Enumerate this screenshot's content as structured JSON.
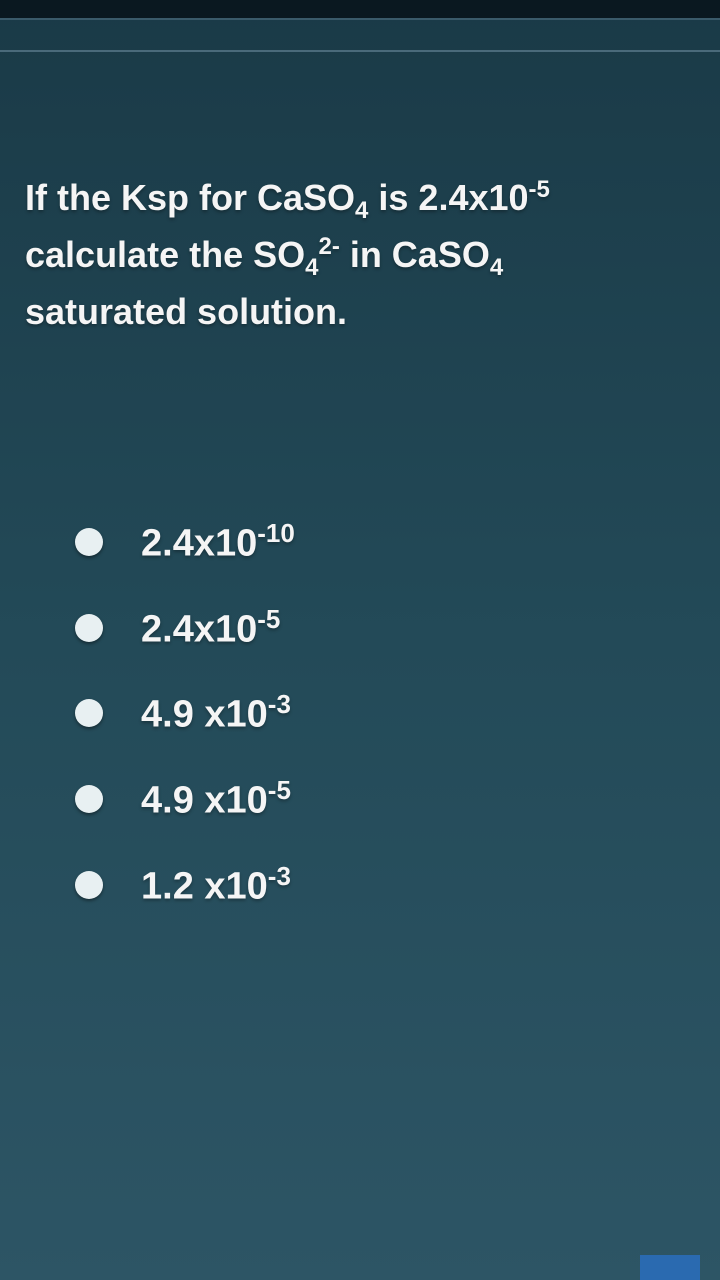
{
  "question": {
    "line1_prefix": "If the Ksp for CaSO",
    "line1_sub1": "4",
    "line1_mid": " is 2.4x10",
    "line1_sup": "-5",
    "line2_prefix": "calculate the SO",
    "line2_sub1": "4",
    "line2_sup": "2-",
    "line2_mid": " in CaSO",
    "line2_sub2": "4",
    "line3": "saturated solution."
  },
  "options": [
    {
      "base": "2.4x10",
      "exp": "-10"
    },
    {
      "base": "2.4x10",
      "exp": "-5"
    },
    {
      "base": "4.9 x10",
      "exp": "-3"
    },
    {
      "base": "4.9 x10",
      "exp": "-5"
    },
    {
      "base": "1.2 x10",
      "exp": "-3"
    }
  ],
  "colors": {
    "background_top": "#1a3a47",
    "background_bottom": "#2d5565",
    "text": "#f5f5f5",
    "radio": "#e8f0f2",
    "accent": "#2a6ab0"
  }
}
